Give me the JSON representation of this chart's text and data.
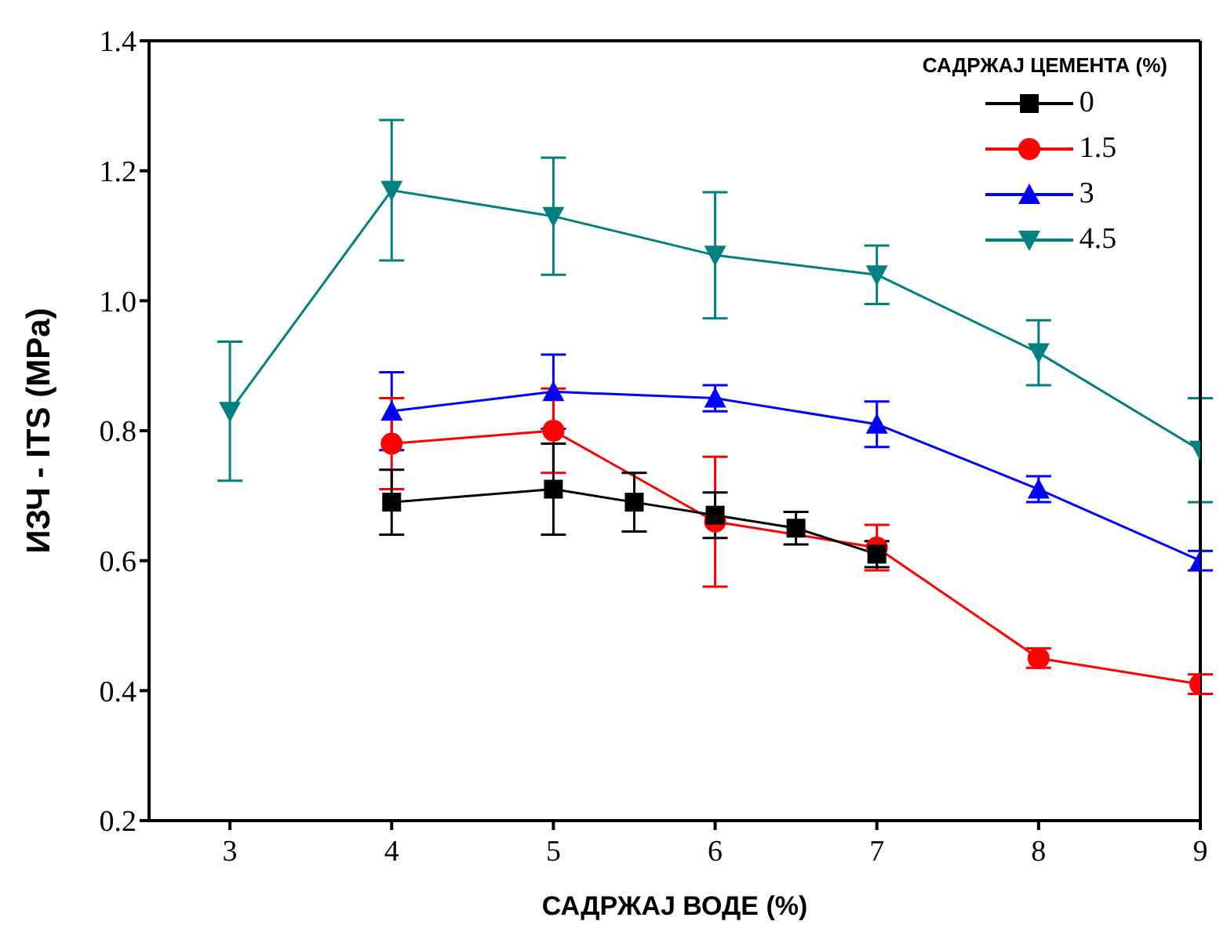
{
  "chart_data": {
    "type": "line",
    "xlabel": "САДРЖАЈ ВОДЕ (%)",
    "ylabel": "ИЗЧ - ITS (MPa)",
    "legend_title": "САДРЖАЈ ЦЕМЕНТА (%)",
    "xlim": [
      2.5,
      9
    ],
    "xticks": [
      3,
      4,
      5,
      6,
      7,
      8,
      9
    ],
    "ylim": [
      0.2,
      1.4
    ],
    "yticks": [
      {
        "value": 0.2,
        "label": "0.2"
      },
      {
        "value": 0.4,
        "label": "0.4"
      },
      {
        "value": 0.6,
        "label": "0.6"
      },
      {
        "value": 0.8,
        "label": "0.8"
      },
      {
        "value": 1.0,
        "label": "1.0"
      },
      {
        "value": 1.2,
        "label": "1.2"
      },
      {
        "value": 1.4,
        "label": "1.4"
      }
    ],
    "grid": false,
    "legend": "top right",
    "line_style": "solid",
    "series": [
      {
        "name": "0",
        "color": "#000000",
        "marker": "square",
        "x": [
          4,
          5,
          5.5,
          6,
          6.5,
          7
        ],
        "values": [
          0.69,
          0.71,
          0.69,
          0.67,
          0.65,
          0.61
        ],
        "errors": [
          0.05,
          0.07,
          0.045,
          0.035,
          0.025,
          0.02
        ]
      },
      {
        "name": "1.5",
        "color": "#ff0000",
        "marker": "circle",
        "x": [
          4,
          5,
          6,
          7,
          8,
          9
        ],
        "values": [
          0.78,
          0.8,
          0.66,
          0.62,
          0.45,
          0.41
        ],
        "errors": [
          0.07,
          0.065,
          0.1,
          0.035,
          0.015,
          0.015
        ]
      },
      {
        "name": "3",
        "color": "#0000ff",
        "marker": "triangle",
        "x": [
          4,
          5,
          6,
          7,
          8,
          9
        ],
        "values": [
          0.83,
          0.86,
          0.85,
          0.81,
          0.71,
          0.6
        ],
        "errors": [
          0.06,
          0.057,
          0.02,
          0.035,
          0.02,
          0.015
        ]
      },
      {
        "name": "4.5",
        "color": "#008080",
        "marker": "triangle-down",
        "x": [
          3,
          4,
          5,
          6,
          7,
          8,
          9
        ],
        "values": [
          0.83,
          1.17,
          1.13,
          1.07,
          1.04,
          0.92,
          0.77
        ],
        "errors": [
          0.107,
          0.108,
          0.09,
          0.097,
          0.045,
          0.05,
          0.08
        ]
      }
    ]
  }
}
